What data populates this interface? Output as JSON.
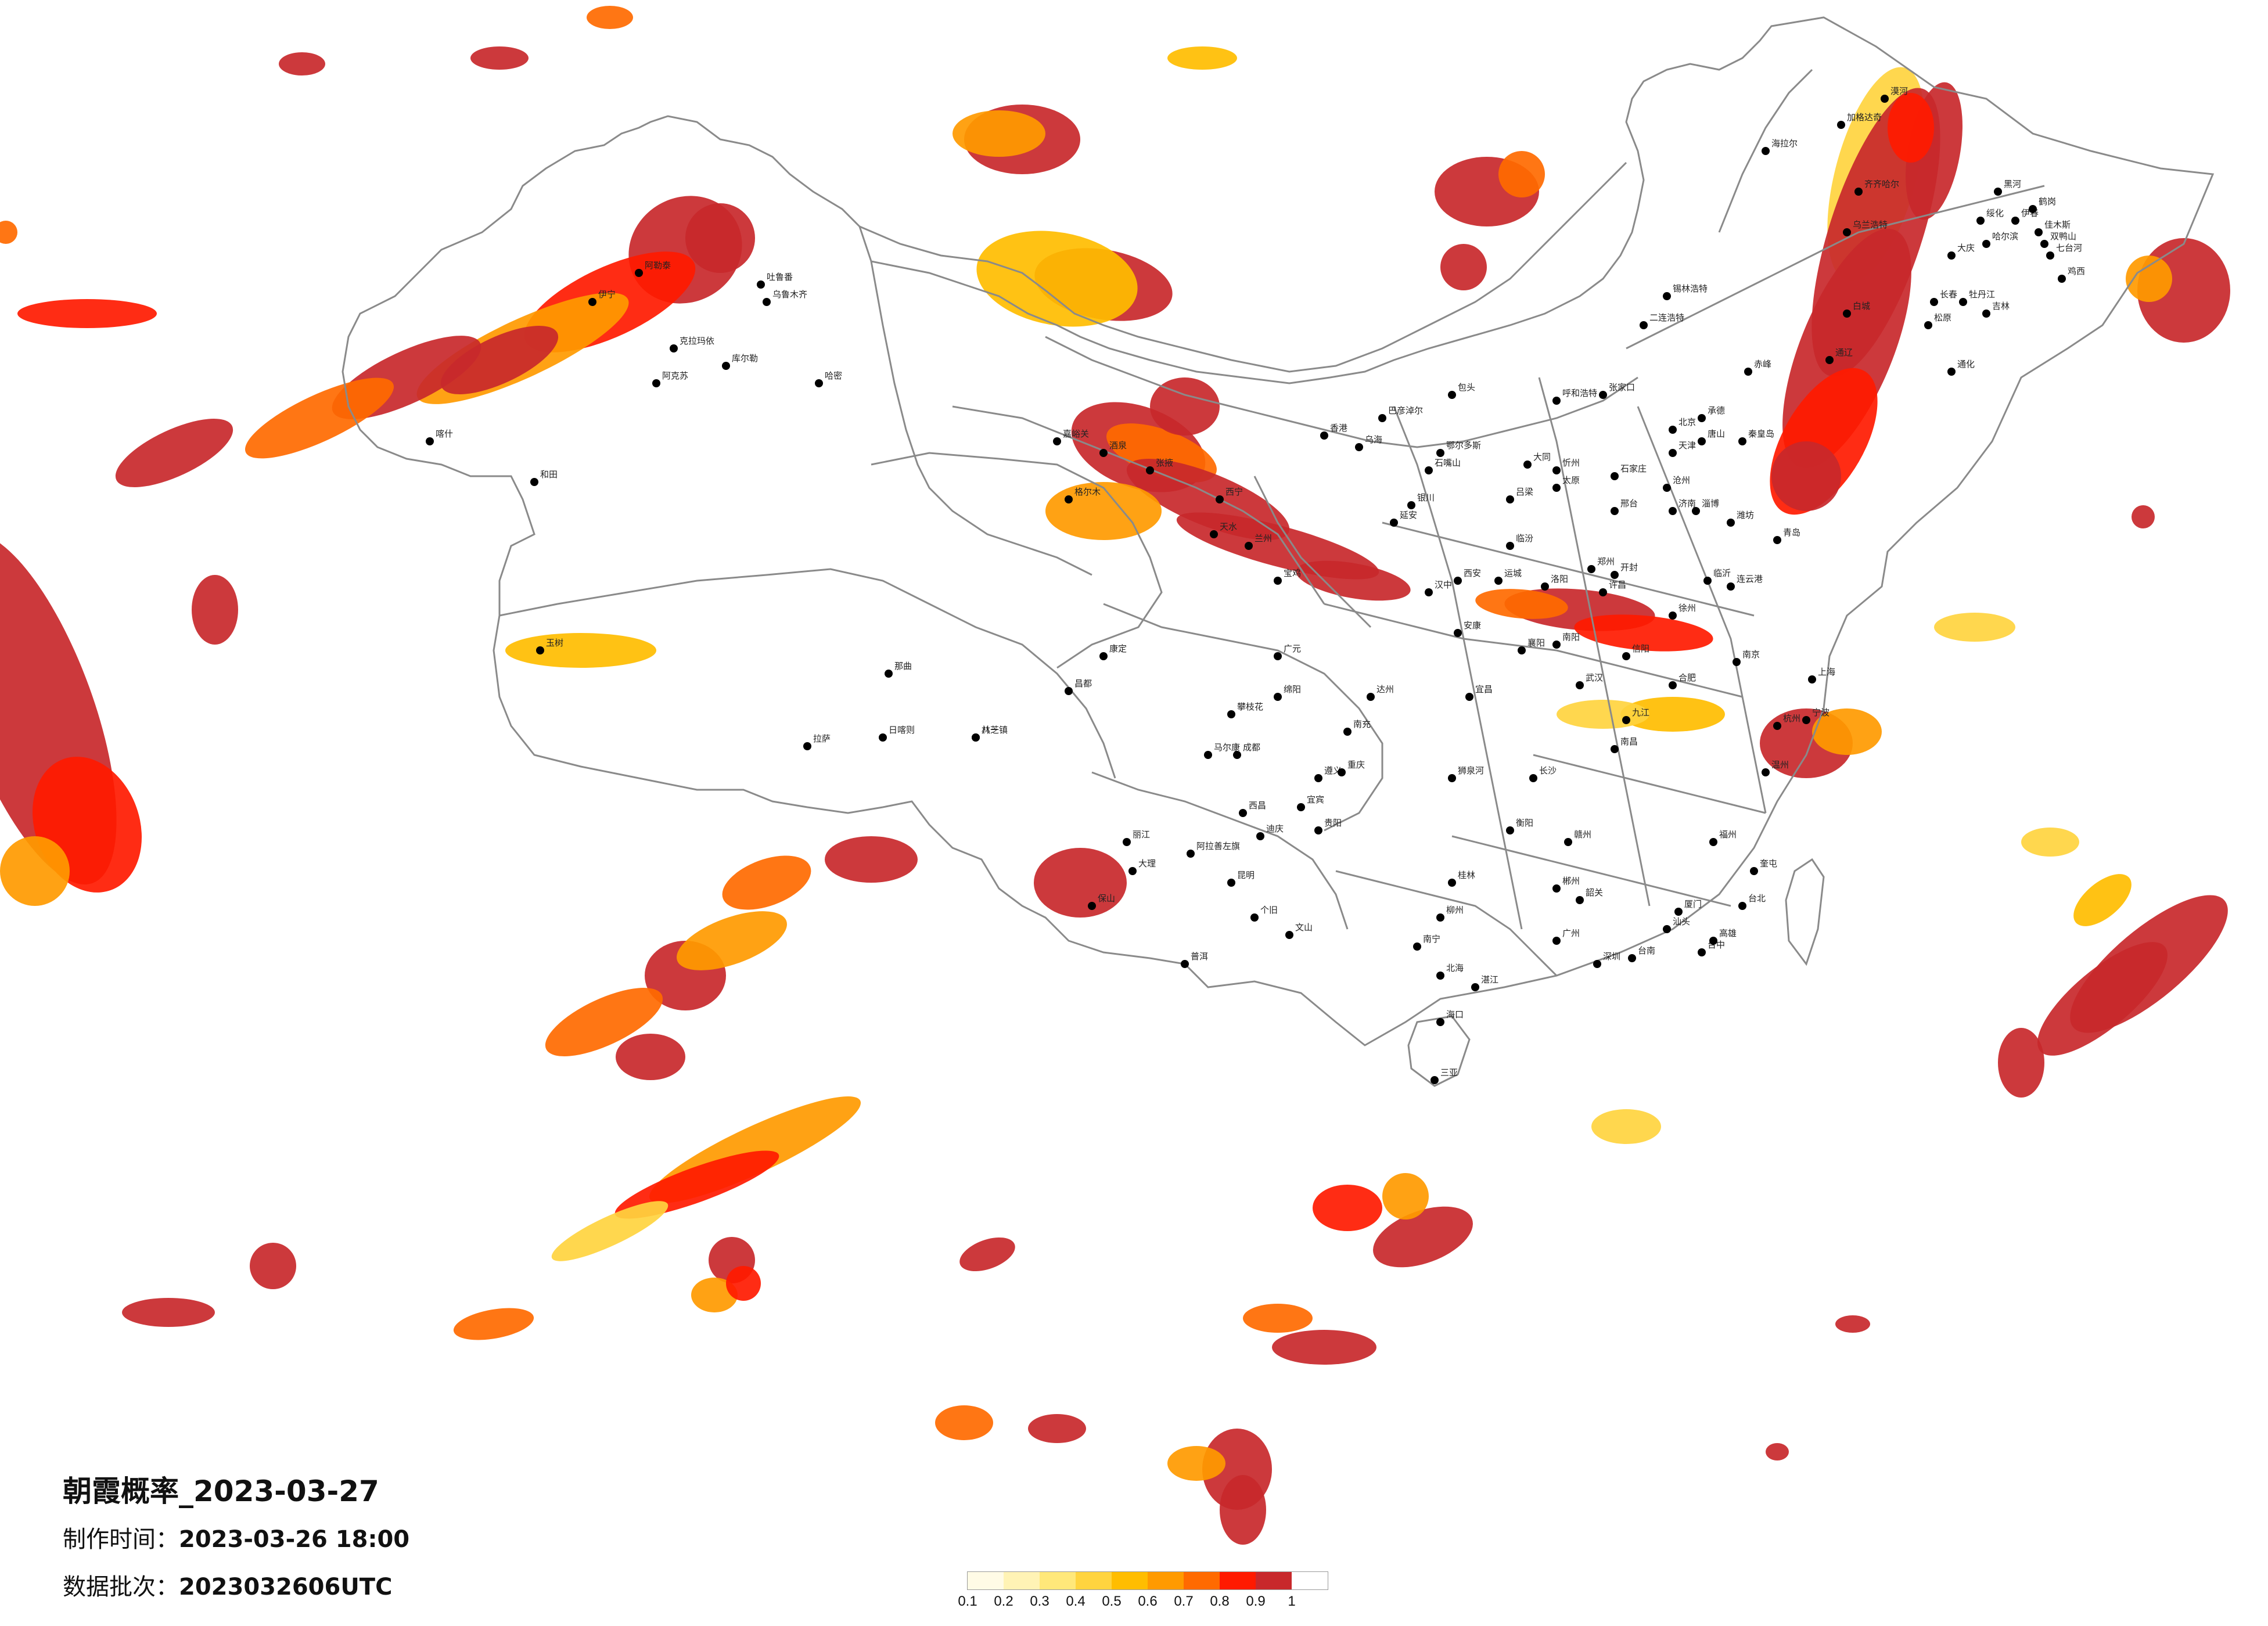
{
  "title": "朝霞概率_2023-03-27",
  "production_time_label": "制作时间：",
  "production_time_value": "2023-03-26 18:00",
  "data_batch_label": "数据批次：",
  "data_batch_value": "2023032606UTC",
  "legend": {
    "colors": [
      "#fffbe6",
      "#fff3b5",
      "#ffe87a",
      "#ffd43f",
      "#ffbd00",
      "#ff9a00",
      "#ff6a00",
      "#ff1a00",
      "#c8282b"
    ],
    "ticks": [
      "0.1",
      "0.2",
      "0.3",
      "0.4",
      "0.5",
      "0.6",
      "0.7",
      "0.8",
      "0.9",
      "1"
    ]
  },
  "map_style": {
    "land_fill": "#ffffff",
    "border_color": "#8a8a8a",
    "city_dot_color": "#000000"
  },
  "cities": [
    "漠河",
    "加格达奇",
    "黑河",
    "海拉尔",
    "齐齐哈尔",
    "伊春",
    "鹤岗",
    "佳木斯",
    "双鸭山",
    "七台河",
    "鸡西",
    "绥化",
    "哈尔滨",
    "大庆",
    "牡丹江",
    "乌兰浩特",
    "松原",
    "长春",
    "吉林",
    "白城",
    "通化",
    "锡林浩特",
    "赤峰",
    "通辽",
    "承德",
    "张家口",
    "北京",
    "天津",
    "唐山",
    "秦皇岛",
    "呼和浩特",
    "包头",
    "二连浩特",
    "乌海",
    "巴彦淖尔",
    "鄂尔多斯",
    "石家庄",
    "邢台",
    "沧州",
    "大同",
    "太原",
    "忻州",
    "吕梁",
    "临汾",
    "运城",
    "郑州",
    "开封",
    "洛阳",
    "许昌",
    "南阳",
    "信阳",
    "济南",
    "淄博",
    "潍坊",
    "青岛",
    "临沂",
    "徐州",
    "连云港",
    "南京",
    "合肥",
    "上海",
    "杭州",
    "宁波",
    "温州",
    "福州",
    "厦门",
    "南昌",
    "九江",
    "赣州",
    "武汉",
    "宜昌",
    "襄阳",
    "长沙",
    "衡阳",
    "郴州",
    "广州",
    "深圳",
    "汕头",
    "韶关",
    "湛江",
    "南宁",
    "桂林",
    "柳州",
    "北海",
    "海口",
    "三亚",
    "贵阳",
    "遵义",
    "昆明",
    "大理",
    "丽江",
    "保山",
    "普洱",
    "个旧",
    "文山",
    "成都",
    "重庆",
    "绵阳",
    "广元",
    "南充",
    "达州",
    "宜宾",
    "西昌",
    "西安",
    "宝鸡",
    "延安",
    "汉中",
    "安康",
    "兰州",
    "天水",
    "张掖",
    "酒泉",
    "嘉峪关",
    "西宁",
    "格尔木",
    "银川",
    "石嘴山",
    "拉萨",
    "日喀则",
    "林芝",
    "那曲",
    "昌都",
    "八一镇",
    "乌鲁木齐",
    "克拉玛依",
    "伊宁",
    "阿克苏",
    "喀什",
    "和田",
    "库尔勒",
    "哈密",
    "吐鲁番",
    "阿勒泰",
    "奎屯",
    "台北",
    "台中",
    "高雄",
    "台南",
    "香港",
    "阿拉善左旗",
    "迪庆",
    "攀枝花",
    "马尔康",
    "康定",
    "玉树",
    "狮泉河"
  ]
}
